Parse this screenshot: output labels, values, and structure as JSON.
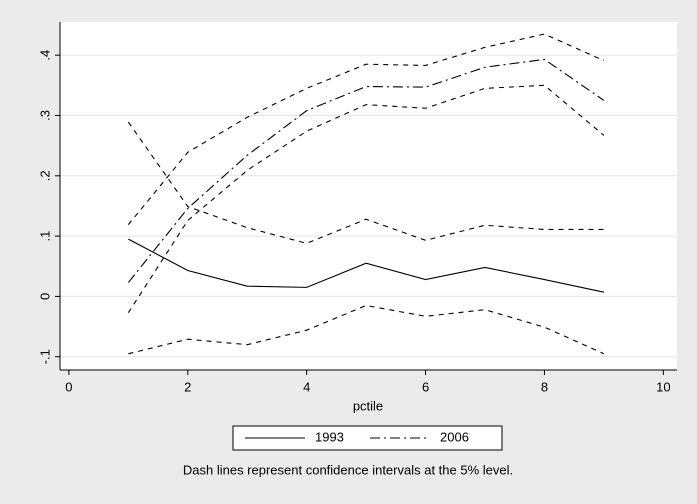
{
  "chart_data": {
    "type": "line",
    "x": [
      1,
      2,
      3,
      4,
      5,
      6,
      7,
      8,
      9
    ],
    "xlabel": "pctile",
    "series": [
      {
        "name": "1993",
        "color": "#000000",
        "style": "solid",
        "values": [
          0.095,
          0.043,
          0.017,
          0.015,
          0.055,
          0.028,
          0.048,
          0.028,
          0.007
        ]
      },
      {
        "name": "2006",
        "color": "#000000",
        "style": "dashdot",
        "values": [
          0.023,
          0.146,
          0.234,
          0.308,
          0.348,
          0.347,
          0.38,
          0.393,
          0.325
        ]
      }
    ],
    "confidence_intervals": [
      {
        "color": "#000000",
        "style": "dash",
        "values": [
          0.289,
          0.149,
          0.114,
          0.088,
          0.128,
          0.093,
          0.118,
          0.111,
          0.111
        ]
      },
      {
        "color": "#000000",
        "style": "dash",
        "values": [
          -0.095,
          -0.071,
          -0.08,
          -0.056,
          -0.015,
          -0.033,
          -0.022,
          -0.051,
          -0.095
        ]
      },
      {
        "color": "#000000",
        "style": "dash",
        "values": [
          0.119,
          0.239,
          0.297,
          0.345,
          0.385,
          0.383,
          0.413,
          0.435,
          0.391
        ]
      },
      {
        "color": "#000000",
        "style": "dash",
        "values": [
          -0.027,
          0.126,
          0.209,
          0.274,
          0.318,
          0.312,
          0.345,
          0.35,
          0.267
        ]
      }
    ],
    "xlim": [
      -0.15,
      10.23
    ],
    "xticks": [
      0,
      2,
      4,
      6,
      8,
      10
    ],
    "ylim": [
      -0.122,
      0.455
    ],
    "yticks": [
      {
        "value": -0.1,
        "label": "-.1"
      },
      0,
      {
        "value": 0.1,
        "label": ".1"
      },
      {
        "value": 0.2,
        "label": ".2"
      },
      {
        "value": 0.3,
        "label": ".3"
      },
      {
        "value": 0.4,
        "label": ".4"
      }
    ],
    "grid": true,
    "note": "Dash lines represent confidence intervals at the 5% level."
  }
}
